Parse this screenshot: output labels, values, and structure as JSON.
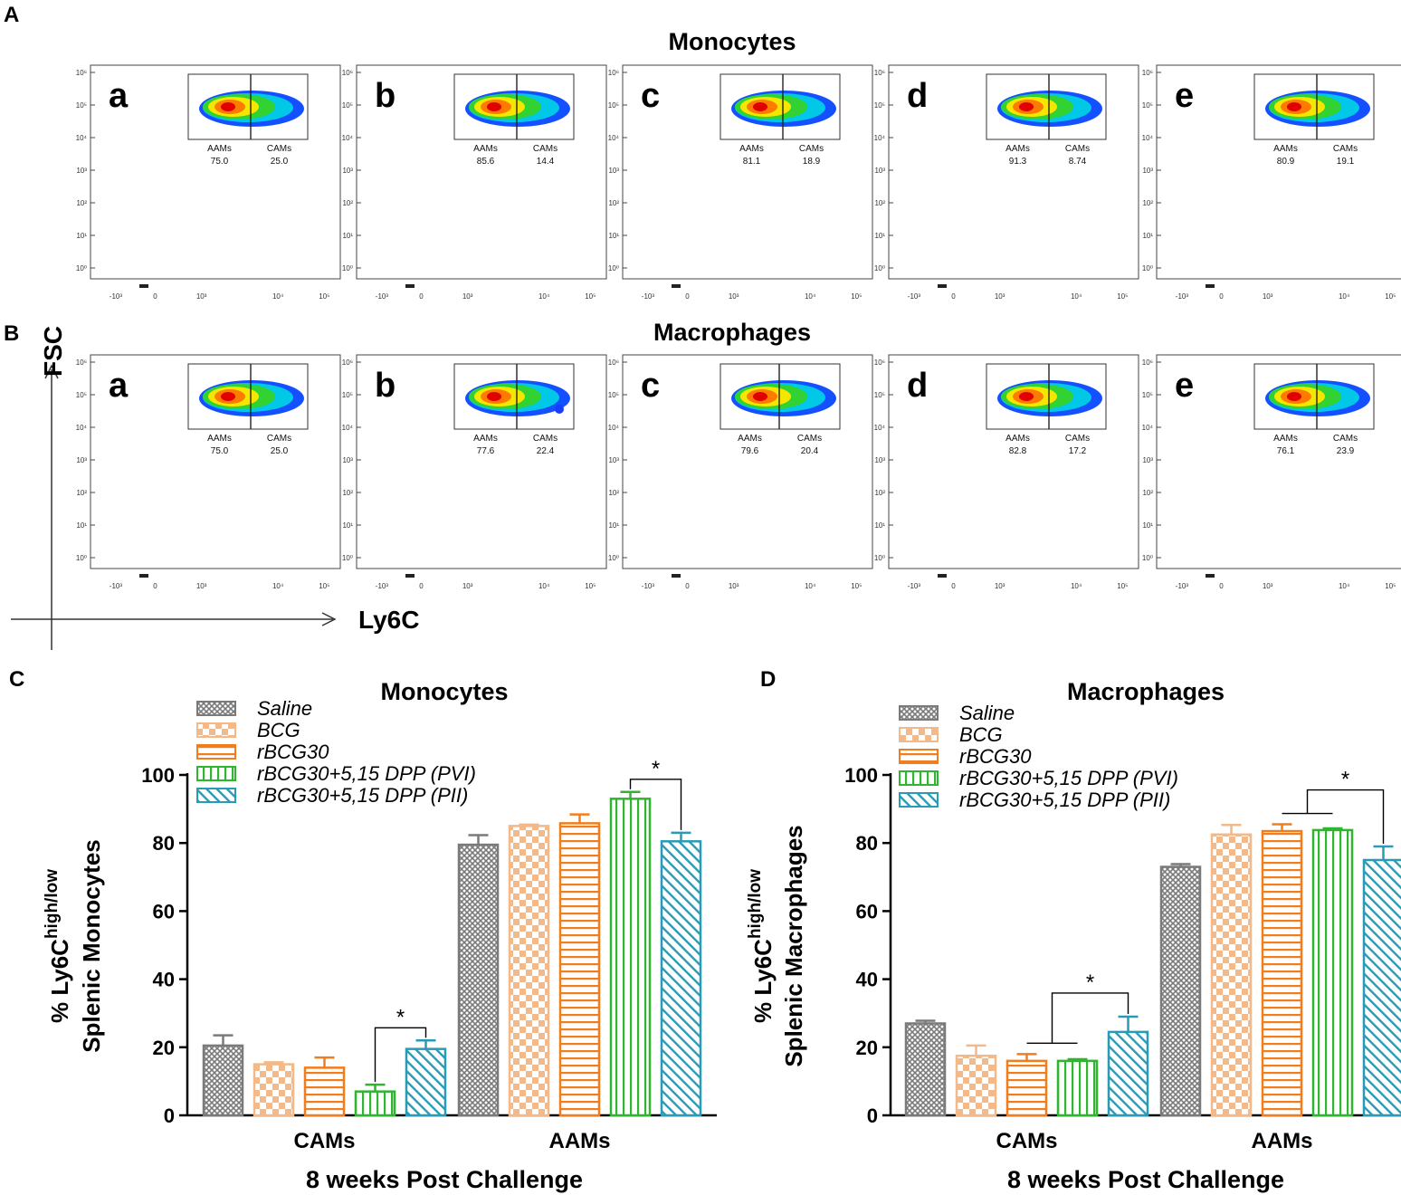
{
  "panel_letters": {
    "A": "A",
    "B": "B",
    "C": "C",
    "D": "D"
  },
  "flow": {
    "titles": {
      "monocytes": "Monocytes",
      "macrophages": "Macrophages"
    },
    "axis_labels": {
      "y": "FSC",
      "x": "Ly6C"
    },
    "gate_labels": {
      "left": "AAMs",
      "right": "CAMs"
    },
    "y_ticks": [
      "10⁶",
      "10⁵",
      "10⁴",
      "10³",
      "10²",
      "10¹",
      "10⁰"
    ],
    "x_ticks": [
      "-10³",
      "0",
      "10³",
      "10⁴",
      "10⁵"
    ],
    "rows": [
      {
        "name": "monocytes",
        "plots": [
          {
            "letter": "a",
            "aams": "75.0",
            "cams": "25.0"
          },
          {
            "letter": "b",
            "aams": "85.6",
            "cams": "14.4"
          },
          {
            "letter": "c",
            "aams": "81.1",
            "cams": "18.9"
          },
          {
            "letter": "d",
            "aams": "91.3",
            "cams": "8.74"
          },
          {
            "letter": "e",
            "aams": "80.9",
            "cams": "19.1"
          }
        ]
      },
      {
        "name": "macrophages",
        "plots": [
          {
            "letter": "a",
            "aams": "75.0",
            "cams": "25.0"
          },
          {
            "letter": "b",
            "aams": "77.6",
            "cams": "22.4"
          },
          {
            "letter": "c",
            "aams": "79.6",
            "cams": "20.4"
          },
          {
            "letter": "d",
            "aams": "82.8",
            "cams": "17.2"
          },
          {
            "letter": "e",
            "aams": "76.1",
            "cams": "23.9"
          }
        ]
      }
    ]
  },
  "colors": {
    "saline": "#7a7a7a",
    "bcg": "#f2b98a",
    "rbcg30": "#f07d1e",
    "pvi": "#2fb52f",
    "pii": "#2a9bb5"
  },
  "chart_data": [
    {
      "type": "bar",
      "title": "Monocytes",
      "xlabel": "8 weeks Post Challenge",
      "ylabel_line1_prefix": "% Ly6C",
      "ylabel_superscript": "high/low",
      "ylabel_line2": "Splenic Monocytes",
      "ylim": [
        0,
        100
      ],
      "yticks": [
        0,
        20,
        40,
        60,
        80,
        100
      ],
      "categories": [
        "CAMs",
        "AAMs"
      ],
      "series": [
        {
          "name": "Saline",
          "values": [
            20.5,
            79.5
          ],
          "errors": [
            3.0,
            2.8
          ]
        },
        {
          "name": "BCG",
          "values": [
            15.0,
            85.0
          ],
          "errors": [
            0.6,
            0.4
          ]
        },
        {
          "name": "rBCG30",
          "values": [
            14.0,
            85.8
          ],
          "errors": [
            3.0,
            2.6
          ]
        },
        {
          "name": "rBCG30+5,15 DPP (PVI)",
          "values": [
            7.0,
            93.0
          ],
          "errors": [
            2.0,
            2.0
          ]
        },
        {
          "name": "rBCG30+5,15 DPP (PII)",
          "values": [
            19.5,
            80.5
          ],
          "errors": [
            2.5,
            2.5
          ]
        }
      ],
      "significance": [
        {
          "category": "CAMs",
          "between": [
            "rBCG30+5,15 DPP (PVI)",
            "rBCG30+5,15 DPP (PII)"
          ],
          "label": "*"
        },
        {
          "category": "AAMs",
          "between": [
            "rBCG30+5,15 DPP (PVI)",
            "rBCG30+5,15 DPP (PII)"
          ],
          "label": "*"
        }
      ]
    },
    {
      "type": "bar",
      "title": "Macrophages",
      "xlabel": "8 weeks Post Challenge",
      "ylabel_line1_prefix": "% Ly6C",
      "ylabel_superscript": "high/low",
      "ylabel_line2": "Splenic Macrophages",
      "ylim": [
        0,
        100
      ],
      "yticks": [
        0,
        20,
        40,
        60,
        80,
        100
      ],
      "categories": [
        "CAMs",
        "AAMs"
      ],
      "series": [
        {
          "name": "Saline",
          "values": [
            27.0,
            73.0
          ],
          "errors": [
            0.8,
            0.8
          ]
        },
        {
          "name": "BCG",
          "values": [
            17.5,
            82.5
          ],
          "errors": [
            3.0,
            2.8
          ]
        },
        {
          "name": "rBCG30",
          "values": [
            16.0,
            83.5
          ],
          "errors": [
            2.0,
            2.0
          ]
        },
        {
          "name": "rBCG30+5,15 DPP (PVI)",
          "values": [
            16.0,
            83.8
          ],
          "errors": [
            0.5,
            0.5
          ]
        },
        {
          "name": "rBCG30+5,15 DPP (PII)",
          "values": [
            24.5,
            75.0
          ],
          "errors": [
            4.5,
            4.0
          ]
        }
      ],
      "significance": [
        {
          "category": "CAMs",
          "between": [
            "rBCG30",
            "rBCG30+5,15 DPP (PVI)",
            "rBCG30+5,15 DPP (PII)"
          ],
          "label": "*"
        },
        {
          "category": "AAMs",
          "between": [
            "rBCG30",
            "rBCG30+5,15 DPP (PVI)",
            "rBCG30+5,15 DPP (PII)"
          ],
          "label": "*"
        }
      ]
    }
  ]
}
